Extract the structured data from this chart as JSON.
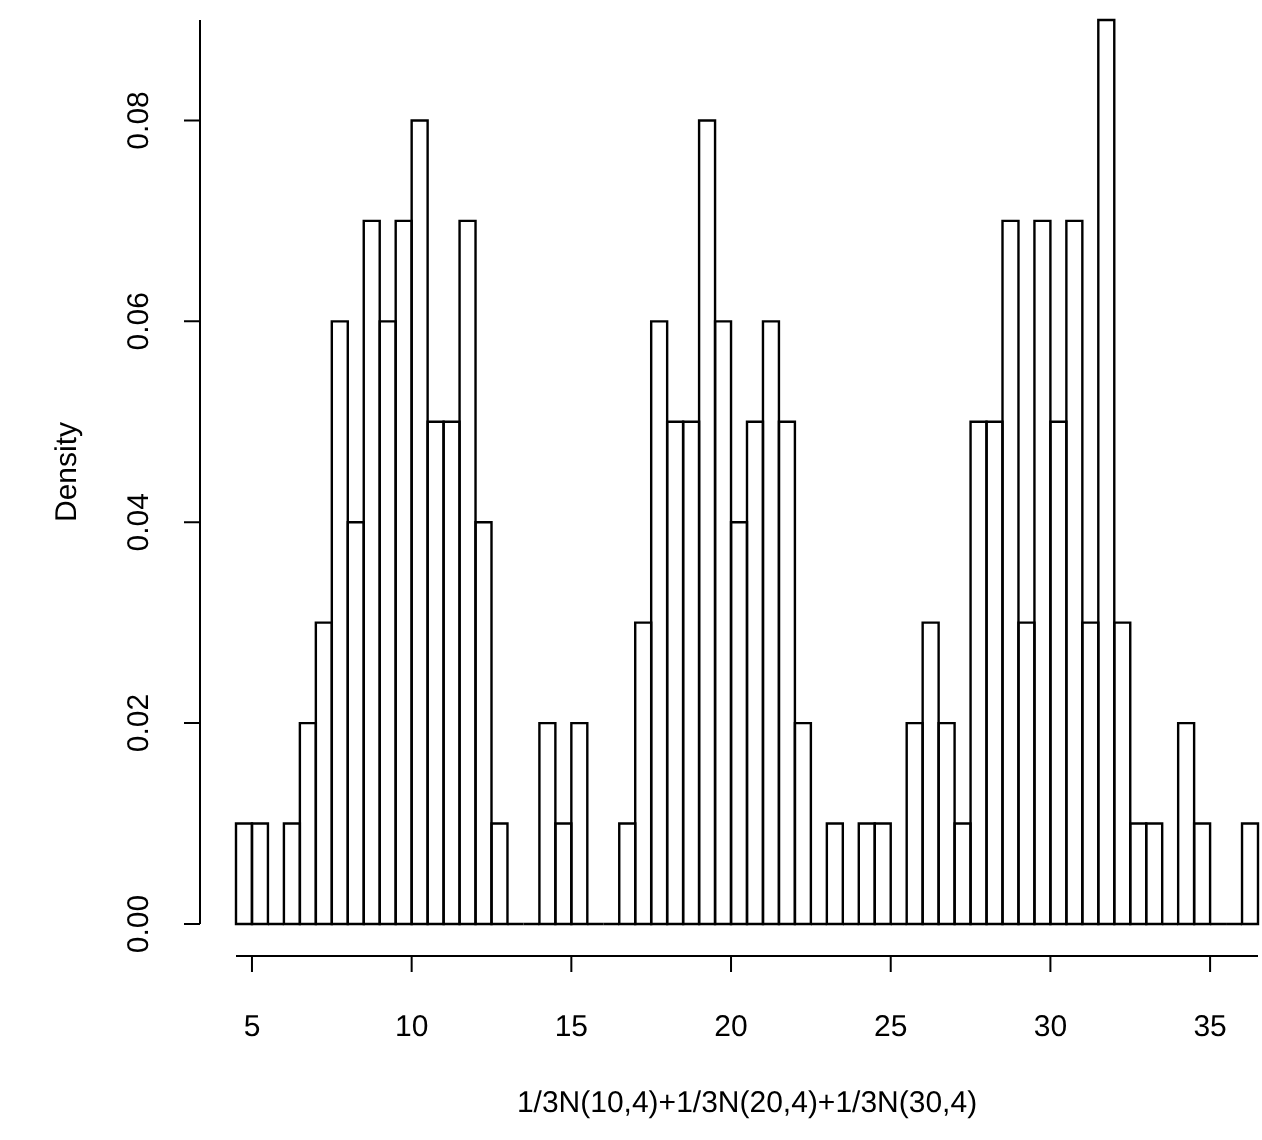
{
  "chart_data": {
    "type": "histogram",
    "xlabel": "1/3N(10,4)+1/3N(20,4)+1/3N(30,4)",
    "ylabel": "Density",
    "color": "#000000",
    "bins": [
      4.5,
      5,
      5.5,
      6,
      6.5,
      7,
      7.5,
      8,
      8.5,
      9,
      9.5,
      10,
      10.5,
      11,
      11.5,
      12,
      12.5,
      13,
      13.5,
      14,
      14.5,
      15,
      15.5,
      16,
      16.5,
      17,
      17.5,
      18,
      18.5,
      19,
      19.5,
      20,
      20.5,
      21,
      21.5,
      22,
      22.5,
      23,
      23.5,
      24,
      24.5,
      25,
      25.5,
      26,
      26.5,
      27,
      27.5,
      28,
      28.5,
      29,
      29.5,
      30,
      30.5,
      31,
      31.5,
      32,
      32.5,
      33,
      33.5,
      34,
      34.5,
      35,
      35.5,
      36,
      36.5
    ],
    "values": [
      0.01,
      0.01,
      0,
      0.01,
      0.02,
      0.03,
      0.06,
      0.04,
      0.07,
      0.06,
      0.07,
      0.08,
      0.05,
      0.05,
      0.07,
      0.04,
      0.01,
      0,
      0,
      0.02,
      0.01,
      0.02,
      0,
      0,
      0.01,
      0.03,
      0.06,
      0.05,
      0.05,
      0.08,
      0.06,
      0.04,
      0.05,
      0.06,
      0.05,
      0.02,
      0,
      0.01,
      0,
      0.01,
      0.01,
      0,
      0.02,
      0.03,
      0.02,
      0.01,
      0.05,
      0.05,
      0.07,
      0.03,
      0.07,
      0.05,
      0.07,
      0.03,
      0.09,
      0.03,
      0.01,
      0.01,
      0,
      0.02,
      0.01,
      0,
      0,
      0.01
    ],
    "xlim": [
      4.5,
      36.5
    ],
    "xticks": [
      5,
      10,
      15,
      20,
      25,
      30,
      35
    ],
    "ylim": [
      0,
      0.09
    ],
    "yticks": [
      {
        "value": 0,
        "label": "0.00"
      },
      {
        "value": 0.02,
        "label": "0.02"
      },
      {
        "value": 0.04,
        "label": "0.04"
      },
      {
        "value": 0.06,
        "label": "0.06"
      },
      {
        "value": 0.08,
        "label": "0.08"
      }
    ],
    "legend": false
  }
}
